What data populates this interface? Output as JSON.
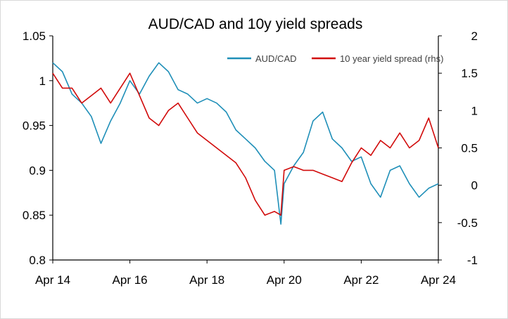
{
  "chart_data": {
    "type": "line",
    "title": "AUD/CAD and 10y yield spreads",
    "grid": false,
    "legend_position": "top-right",
    "x_axis": {
      "range": [
        "2014-04",
        "2024-04"
      ],
      "tick_labels": [
        "Apr 14",
        "Apr 16",
        "Apr 18",
        "Apr 20",
        "Apr 22",
        "Apr 24"
      ],
      "tick_values": [
        "2014-04",
        "2016-04",
        "2018-04",
        "2020-04",
        "2022-04",
        "2024-04"
      ]
    },
    "y_left": {
      "range": [
        0.8,
        1.05
      ],
      "tick_values": [
        0.8,
        0.85,
        0.9,
        0.95,
        1.0,
        1.05
      ],
      "tick_labels": [
        "0.8",
        "0.85",
        "0.9",
        "0.95",
        "1",
        "1.05"
      ]
    },
    "y_right": {
      "range": [
        -1,
        2
      ],
      "tick_values": [
        -1,
        -0.5,
        0,
        0.5,
        1,
        1.5,
        2
      ],
      "tick_labels": [
        "-1",
        "-0.5",
        "0",
        "0.5",
        "1",
        "1.5",
        "2"
      ]
    },
    "series": [
      {
        "name": "AUD/CAD",
        "axis": "left",
        "color": "#1f8fb8",
        "x": [
          "2014-04",
          "2014-07",
          "2014-10",
          "2015-01",
          "2015-04",
          "2015-07",
          "2015-10",
          "2016-01",
          "2016-04",
          "2016-07",
          "2016-10",
          "2017-01",
          "2017-04",
          "2017-07",
          "2017-10",
          "2018-01",
          "2018-04",
          "2018-07",
          "2018-10",
          "2019-01",
          "2019-04",
          "2019-07",
          "2019-10",
          "2020-01",
          "2020-03",
          "2020-04",
          "2020-07",
          "2020-10",
          "2021-01",
          "2021-04",
          "2021-07",
          "2021-10",
          "2022-01",
          "2022-04",
          "2022-07",
          "2022-10",
          "2023-01",
          "2023-04",
          "2023-07",
          "2023-10",
          "2024-01",
          "2024-04"
        ],
        "values": [
          1.02,
          1.01,
          0.985,
          0.975,
          0.96,
          0.93,
          0.955,
          0.975,
          1.0,
          0.985,
          1.005,
          1.02,
          1.01,
          0.99,
          0.985,
          0.975,
          0.98,
          0.975,
          0.965,
          0.945,
          0.935,
          0.925,
          0.91,
          0.9,
          0.84,
          0.885,
          0.905,
          0.92,
          0.955,
          0.965,
          0.935,
          0.925,
          0.91,
          0.915,
          0.885,
          0.87,
          0.9,
          0.905,
          0.885,
          0.87,
          0.88,
          0.885
        ]
      },
      {
        "name": "10 year yield spread (rhs)",
        "axis": "right",
        "color": "#d10a0a",
        "x": [
          "2014-04",
          "2014-07",
          "2014-10",
          "2015-01",
          "2015-04",
          "2015-07",
          "2015-10",
          "2016-01",
          "2016-04",
          "2016-07",
          "2016-10",
          "2017-01",
          "2017-04",
          "2017-07",
          "2017-10",
          "2018-01",
          "2018-04",
          "2018-07",
          "2018-10",
          "2019-01",
          "2019-04",
          "2019-07",
          "2019-10",
          "2020-01",
          "2020-03",
          "2020-04",
          "2020-07",
          "2020-10",
          "2021-01",
          "2021-04",
          "2021-07",
          "2021-10",
          "2022-01",
          "2022-04",
          "2022-07",
          "2022-10",
          "2023-01",
          "2023-04",
          "2023-07",
          "2023-10",
          "2024-01",
          "2024-04"
        ],
        "values": [
          1.5,
          1.3,
          1.3,
          1.1,
          1.2,
          1.3,
          1.1,
          1.3,
          1.5,
          1.2,
          0.9,
          0.8,
          1.0,
          1.1,
          0.9,
          0.7,
          0.6,
          0.5,
          0.4,
          0.3,
          0.1,
          -0.2,
          -0.4,
          -0.35,
          -0.4,
          0.2,
          0.25,
          0.2,
          0.2,
          0.15,
          0.1,
          0.05,
          0.3,
          0.5,
          0.4,
          0.6,
          0.5,
          0.7,
          0.5,
          0.6,
          0.9,
          0.5
        ]
      }
    ]
  }
}
